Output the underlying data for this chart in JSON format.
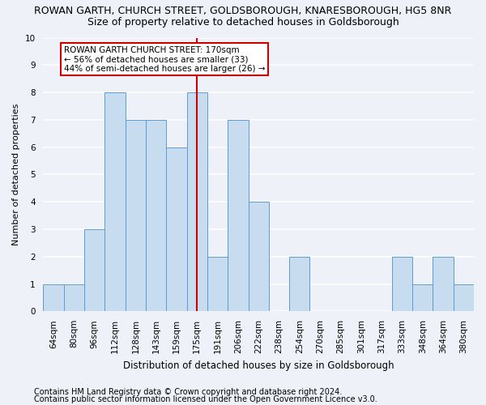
{
  "title": "ROWAN GARTH, CHURCH STREET, GOLDSBOROUGH, KNARESBOROUGH, HG5 8NR",
  "subtitle": "Size of property relative to detached houses in Goldsborough",
  "xlabel": "Distribution of detached houses by size in Goldsborough",
  "ylabel": "Number of detached properties",
  "categories": [
    "64sqm",
    "80sqm",
    "96sqm",
    "112sqm",
    "128sqm",
    "143sqm",
    "159sqm",
    "175sqm",
    "191sqm",
    "206sqm",
    "222sqm",
    "238sqm",
    "254sqm",
    "270sqm",
    "285sqm",
    "301sqm",
    "317sqm",
    "333sqm",
    "348sqm",
    "364sqm",
    "380sqm"
  ],
  "values": [
    1,
    1,
    3,
    8,
    7,
    7,
    6,
    8,
    2,
    7,
    4,
    0,
    2,
    0,
    0,
    0,
    0,
    2,
    1,
    2,
    1
  ],
  "bar_color": "#c8dcf0",
  "bar_edge_color": "#5b9bd5",
  "vline_x_index": 7,
  "vline_color": "#cc0000",
  "annotation_text": "ROWAN GARTH CHURCH STREET: 170sqm\n← 56% of detached houses are smaller (33)\n44% of semi-detached houses are larger (26) →",
  "annotation_box_facecolor": "#ffffff",
  "annotation_box_edgecolor": "#cc0000",
  "ylim": [
    0,
    10
  ],
  "yticks": [
    0,
    1,
    2,
    3,
    4,
    5,
    6,
    7,
    8,
    9,
    10
  ],
  "background_color": "#eef2f8",
  "plot_bg_color": "#eef2f8",
  "grid_color": "#ffffff",
  "footnote1": "Contains HM Land Registry data © Crown copyright and database right 2024.",
  "footnote2": "Contains public sector information licensed under the Open Government Licence v3.0.",
  "title_fontsize": 9,
  "subtitle_fontsize": 9,
  "xlabel_fontsize": 8.5,
  "ylabel_fontsize": 8,
  "tick_fontsize": 7.5,
  "annotation_fontsize": 7.5,
  "footnote_fontsize": 7
}
